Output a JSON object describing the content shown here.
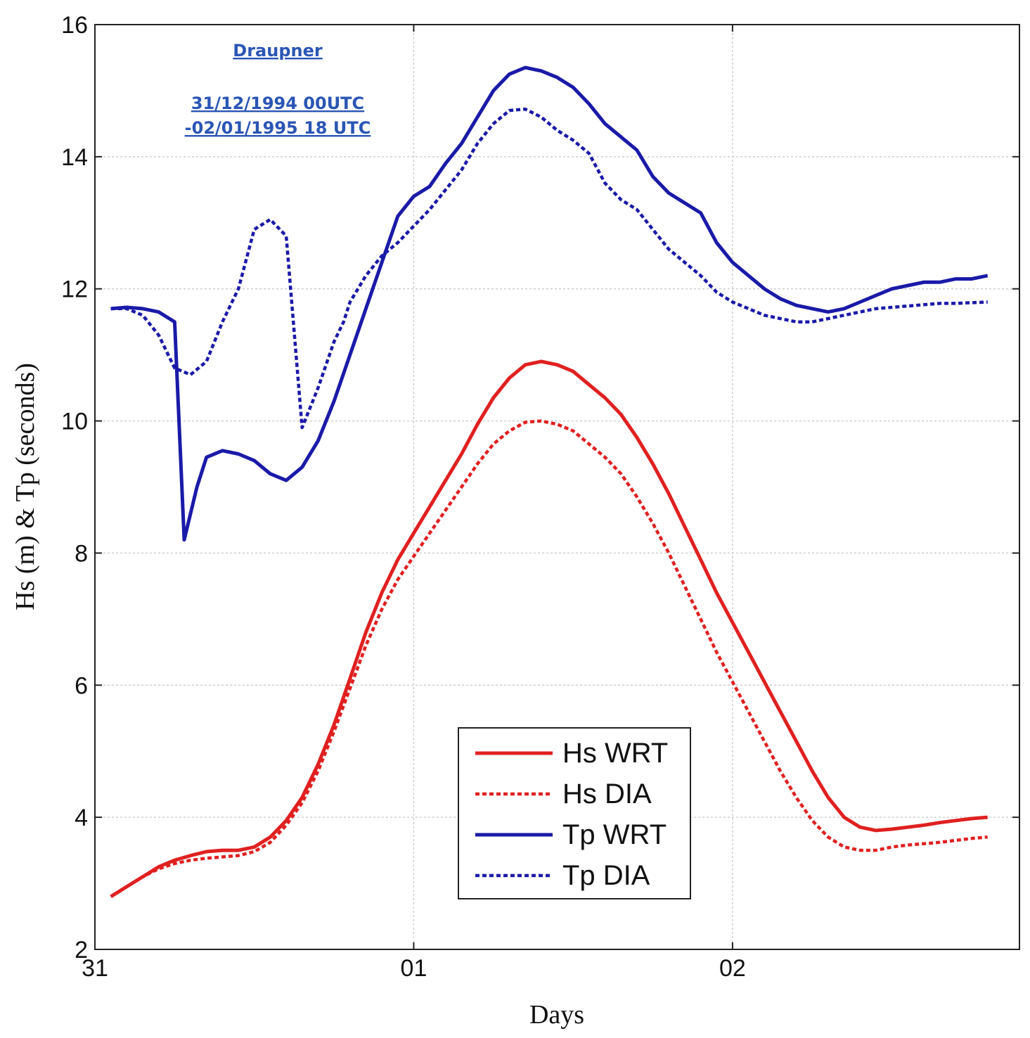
{
  "chart_data": {
    "type": "line",
    "title": "",
    "xlabel": "Days",
    "ylabel": "Hs (m) & Tp (seconds)",
    "xlim": [
      0,
      2.9
    ],
    "ylim": [
      2,
      16
    ],
    "grid": true,
    "xticks": [
      {
        "value": 0,
        "label": "31"
      },
      {
        "value": 1,
        "label": "01"
      },
      {
        "value": 2,
        "label": "02"
      }
    ],
    "yticks": [
      2,
      4,
      6,
      8,
      10,
      12,
      14,
      16
    ],
    "annotations": [
      "Draupner",
      "31/12/1994 00UTC",
      "-02/01/1995 18 UTC"
    ],
    "legend_position": "lower-center",
    "series": [
      {
        "name": "Hs WRT",
        "color": "#e02020",
        "dash": "solid",
        "x": [
          0.05,
          0.1,
          0.15,
          0.2,
          0.25,
          0.3,
          0.35,
          0.4,
          0.45,
          0.5,
          0.55,
          0.6,
          0.65,
          0.7,
          0.75,
          0.8,
          0.85,
          0.9,
          0.95,
          1.0,
          1.05,
          1.1,
          1.15,
          1.2,
          1.25,
          1.3,
          1.35,
          1.4,
          1.45,
          1.5,
          1.55,
          1.6,
          1.65,
          1.7,
          1.75,
          1.8,
          1.85,
          1.9,
          1.95,
          2.0,
          2.05,
          2.1,
          2.15,
          2.2,
          2.25,
          2.3,
          2.35,
          2.4,
          2.45,
          2.5,
          2.55,
          2.6,
          2.65,
          2.7,
          2.75,
          2.8
        ],
        "values": [
          2.8,
          2.95,
          3.1,
          3.25,
          3.35,
          3.42,
          3.48,
          3.5,
          3.5,
          3.55,
          3.7,
          3.95,
          4.3,
          4.8,
          5.4,
          6.1,
          6.8,
          7.4,
          7.9,
          8.3,
          8.7,
          9.1,
          9.5,
          9.95,
          10.35,
          10.65,
          10.85,
          10.9,
          10.85,
          10.75,
          10.55,
          10.35,
          10.1,
          9.75,
          9.35,
          8.9,
          8.4,
          7.9,
          7.4,
          6.95,
          6.5,
          6.05,
          5.6,
          5.15,
          4.7,
          4.3,
          4.0,
          3.85,
          3.8,
          3.82,
          3.85,
          3.88,
          3.92,
          3.95,
          3.98,
          4.0
        ]
      },
      {
        "name": "Hs DIA",
        "color": "#e02020",
        "dash": "dotted",
        "x": [
          0.05,
          0.1,
          0.15,
          0.2,
          0.25,
          0.3,
          0.35,
          0.4,
          0.45,
          0.5,
          0.55,
          0.6,
          0.65,
          0.7,
          0.75,
          0.8,
          0.85,
          0.9,
          0.95,
          1.0,
          1.05,
          1.1,
          1.15,
          1.2,
          1.25,
          1.3,
          1.35,
          1.4,
          1.45,
          1.5,
          1.55,
          1.6,
          1.65,
          1.7,
          1.75,
          1.8,
          1.85,
          1.9,
          1.95,
          2.0,
          2.05,
          2.1,
          2.15,
          2.2,
          2.25,
          2.3,
          2.35,
          2.4,
          2.45,
          2.5,
          2.55,
          2.6,
          2.65,
          2.7,
          2.75,
          2.8
        ],
        "values": [
          2.8,
          2.95,
          3.1,
          3.22,
          3.3,
          3.35,
          3.38,
          3.4,
          3.42,
          3.48,
          3.62,
          3.88,
          4.22,
          4.7,
          5.3,
          5.95,
          6.6,
          7.15,
          7.6,
          7.95,
          8.3,
          8.65,
          9.0,
          9.35,
          9.65,
          9.85,
          9.98,
          10.0,
          9.95,
          9.85,
          9.65,
          9.45,
          9.2,
          8.85,
          8.45,
          8.0,
          7.5,
          7.0,
          6.5,
          6.05,
          5.6,
          5.15,
          4.7,
          4.3,
          3.95,
          3.7,
          3.55,
          3.5,
          3.5,
          3.55,
          3.58,
          3.6,
          3.62,
          3.65,
          3.68,
          3.7
        ]
      },
      {
        "name": "Tp WRT",
        "color": "#1a1aa8",
        "dash": "solid",
        "x": [
          0.05,
          0.1,
          0.15,
          0.2,
          0.25,
          0.28,
          0.32,
          0.35,
          0.4,
          0.45,
          0.5,
          0.55,
          0.6,
          0.65,
          0.7,
          0.75,
          0.8,
          0.85,
          0.9,
          0.95,
          1.0,
          1.05,
          1.1,
          1.15,
          1.2,
          1.25,
          1.3,
          1.35,
          1.4,
          1.45,
          1.5,
          1.55,
          1.6,
          1.65,
          1.7,
          1.75,
          1.8,
          1.85,
          1.9,
          1.95,
          2.0,
          2.05,
          2.1,
          2.15,
          2.2,
          2.25,
          2.3,
          2.35,
          2.4,
          2.45,
          2.5,
          2.55,
          2.6,
          2.65,
          2.7,
          2.75,
          2.8
        ],
        "values": [
          11.7,
          11.72,
          11.7,
          11.65,
          11.5,
          8.2,
          9.0,
          9.45,
          9.55,
          9.5,
          9.4,
          9.2,
          9.1,
          9.3,
          9.7,
          10.3,
          11.0,
          11.7,
          12.4,
          13.1,
          13.4,
          13.55,
          13.9,
          14.2,
          14.6,
          15.0,
          15.25,
          15.35,
          15.3,
          15.2,
          15.05,
          14.8,
          14.5,
          14.3,
          14.1,
          13.7,
          13.45,
          13.3,
          13.15,
          12.7,
          12.4,
          12.2,
          12.0,
          11.85,
          11.75,
          11.7,
          11.65,
          11.7,
          11.8,
          11.9,
          12.0,
          12.05,
          12.1,
          12.1,
          12.15,
          12.15,
          12.2
        ]
      },
      {
        "name": "Tp DIA",
        "color": "#1a1aa8",
        "dash": "dotted",
        "x": [
          0.05,
          0.1,
          0.15,
          0.2,
          0.25,
          0.3,
          0.35,
          0.4,
          0.45,
          0.5,
          0.55,
          0.6,
          0.65,
          0.7,
          0.75,
          0.78,
          0.8,
          0.85,
          0.9,
          0.95,
          1.0,
          1.05,
          1.1,
          1.15,
          1.2,
          1.25,
          1.3,
          1.35,
          1.4,
          1.45,
          1.5,
          1.55,
          1.6,
          1.65,
          1.7,
          1.75,
          1.8,
          1.85,
          1.9,
          1.95,
          2.0,
          2.05,
          2.1,
          2.15,
          2.2,
          2.25,
          2.3,
          2.35,
          2.4,
          2.45,
          2.5,
          2.55,
          2.6,
          2.65,
          2.7,
          2.75,
          2.8
        ],
        "values": [
          11.7,
          11.7,
          11.6,
          11.3,
          10.8,
          10.7,
          10.9,
          11.5,
          12.0,
          12.9,
          13.05,
          12.8,
          9.9,
          10.5,
          11.2,
          11.5,
          11.8,
          12.2,
          12.5,
          12.7,
          12.95,
          13.2,
          13.5,
          13.8,
          14.2,
          14.5,
          14.7,
          14.72,
          14.6,
          14.4,
          14.25,
          14.05,
          13.6,
          13.35,
          13.2,
          12.9,
          12.6,
          12.4,
          12.2,
          11.95,
          11.8,
          11.7,
          11.6,
          11.55,
          11.5,
          11.5,
          11.55,
          11.6,
          11.65,
          11.7,
          11.72,
          11.74,
          11.76,
          11.78,
          11.78,
          11.79,
          11.8
        ]
      }
    ]
  }
}
